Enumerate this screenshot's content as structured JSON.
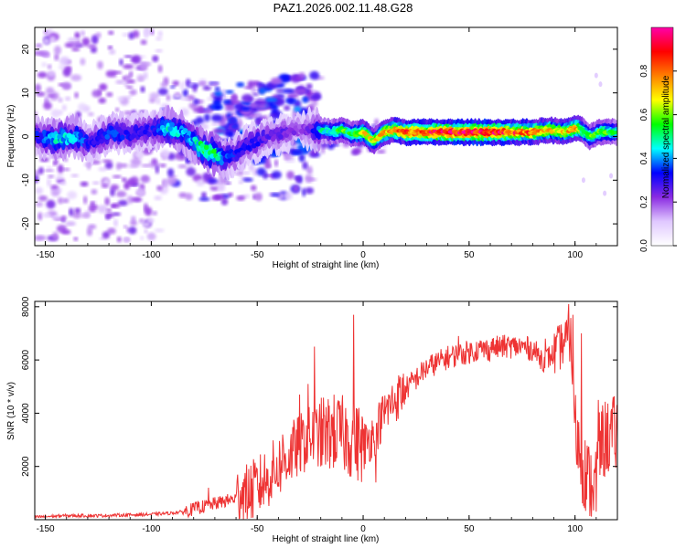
{
  "title": "PAZ1.2026.002.11.48.G28",
  "colors": {
    "background": "#ffffff",
    "axis": "#000000",
    "snr_line": "#ee3333"
  },
  "chart_data": [
    {
      "type": "heatmap",
      "name": "spectrogram",
      "xlabel": "Height of straight line (km)",
      "ylabel": "Frequency (Hz)",
      "xlim": [
        -155,
        120
      ],
      "ylim": [
        -25,
        25
      ],
      "xticks": [
        -150,
        -100,
        -50,
        0,
        50,
        100
      ],
      "yticks": [
        -20,
        -10,
        0,
        10,
        20
      ],
      "colorbar": {
        "label": "Normalized spectral amplitude",
        "range": [
          0,
          1
        ],
        "ticks": [
          0.0,
          0.2,
          0.4,
          0.6,
          0.8
        ],
        "tick_labels": [
          "0.0",
          "0.2",
          "0.4",
          "0.6",
          "0.8"
        ],
        "stops": [
          "#ffffff",
          "#e0c8ff",
          "#8a2be2",
          "#0000ff",
          "#00ffff",
          "#00ff00",
          "#ffff00",
          "#ff8000",
          "#ff0000",
          "#ff00aa"
        ]
      },
      "ridge": [
        [
          -155,
          0.0,
          0.3
        ],
        [
          -145,
          -0.5,
          0.45
        ],
        [
          -135,
          0.0,
          0.4
        ],
        [
          -128,
          -1.5,
          0.3
        ],
        [
          -120,
          1.0,
          0.35
        ],
        [
          -110,
          0.5,
          0.3
        ],
        [
          -100,
          1.5,
          0.3
        ],
        [
          -92,
          2.0,
          0.45
        ],
        [
          -85,
          1.0,
          0.4
        ],
        [
          -80,
          -1.0,
          0.4
        ],
        [
          -75,
          -3.0,
          0.55
        ],
        [
          -70,
          -4.0,
          0.5
        ],
        [
          -65,
          -5.0,
          0.35
        ],
        [
          -60,
          -4.0,
          0.3
        ],
        [
          -55,
          -2.0,
          0.3
        ],
        [
          -50,
          -1.0,
          0.3
        ],
        [
          -45,
          0.0,
          0.25
        ],
        [
          -40,
          0.5,
          0.25
        ],
        [
          -35,
          1.0,
          0.25
        ],
        [
          -30,
          2.0,
          0.2
        ],
        [
          -25,
          1.5,
          0.25
        ],
        [
          -20,
          1.5,
          0.45
        ],
        [
          -15,
          1.0,
          0.5
        ],
        [
          -10,
          1.5,
          0.55
        ],
        [
          -5,
          0.5,
          0.55
        ],
        [
          0,
          1.0,
          0.7
        ],
        [
          5,
          -1.0,
          0.65
        ],
        [
          10,
          1.0,
          0.7
        ],
        [
          15,
          1.5,
          0.75
        ],
        [
          20,
          1.0,
          0.8
        ],
        [
          30,
          1.0,
          0.85
        ],
        [
          40,
          1.0,
          0.9
        ],
        [
          50,
          1.0,
          0.92
        ],
        [
          60,
          1.0,
          0.9
        ],
        [
          70,
          1.0,
          0.85
        ],
        [
          80,
          1.0,
          0.8
        ],
        [
          88,
          1.5,
          0.7
        ],
        [
          95,
          1.0,
          0.7
        ],
        [
          100,
          2.0,
          0.75
        ],
        [
          103,
          1.5,
          0.6
        ],
        [
          107,
          0.0,
          0.55
        ],
        [
          112,
          1.0,
          0.6
        ],
        [
          116,
          1.0,
          0.55
        ],
        [
          120,
          1.0,
          0.5
        ]
      ]
    },
    {
      "type": "line",
      "name": "snr",
      "xlabel": "Height of straight line (km)",
      "ylabel": "SNR (10 * v/v)",
      "xlim": [
        -155,
        120
      ],
      "ylim": [
        0,
        8200
      ],
      "xticks": [
        -150,
        -100,
        -50,
        0,
        50,
        100
      ],
      "yticks": [
        2000,
        4000,
        6000,
        8000
      ],
      "series": [
        {
          "name": "SNR",
          "x": [
            -155,
            -140,
            -125,
            -110,
            -100,
            -90,
            -85,
            -80,
            -75,
            -70,
            -65,
            -60,
            -55,
            -50,
            -45,
            -40,
            -35,
            -30,
            -25,
            -20,
            -15,
            -10,
            -5,
            0,
            5,
            10,
            15,
            20,
            25,
            30,
            35,
            40,
            45,
            50,
            55,
            60,
            65,
            70,
            75,
            80,
            85,
            90,
            95,
            98,
            100,
            103,
            106,
            109,
            112,
            115,
            120
          ],
          "y": [
            100,
            150,
            150,
            180,
            200,
            250,
            300,
            400,
            500,
            600,
            700,
            800,
            900,
            1200,
            1600,
            2000,
            2400,
            2800,
            3100,
            3200,
            3300,
            3200,
            3000,
            2800,
            3200,
            4000,
            4500,
            4900,
            5300,
            5700,
            5900,
            6100,
            6200,
            6300,
            6400,
            6400,
            6500,
            6500,
            6500,
            6400,
            6000,
            6200,
            6700,
            6800,
            3500,
            2200,
            1500,
            1200,
            2800,
            3100,
            3200
          ]
        }
      ],
      "spikes": [
        [
          -78,
          700
        ],
        [
          -73,
          1200
        ],
        [
          -58,
          1100
        ],
        [
          -45,
          1900
        ],
        [
          -38,
          3200
        ],
        [
          -30,
          4700
        ],
        [
          -26,
          5100
        ],
        [
          -23,
          6500
        ],
        [
          -17,
          3700
        ],
        [
          -12,
          4400
        ],
        [
          -4.5,
          7700
        ],
        [
          -2,
          4200
        ],
        [
          0.5,
          1900
        ],
        [
          6,
          1400
        ],
        [
          45,
          6900
        ],
        [
          61,
          6800
        ],
        [
          86,
          6800
        ],
        [
          97,
          8100
        ],
        [
          99,
          7700
        ],
        [
          103,
          7000
        ],
        [
          111,
          4500
        ],
        [
          110,
          300
        ],
        [
          108,
          1300
        ]
      ]
    }
  ]
}
